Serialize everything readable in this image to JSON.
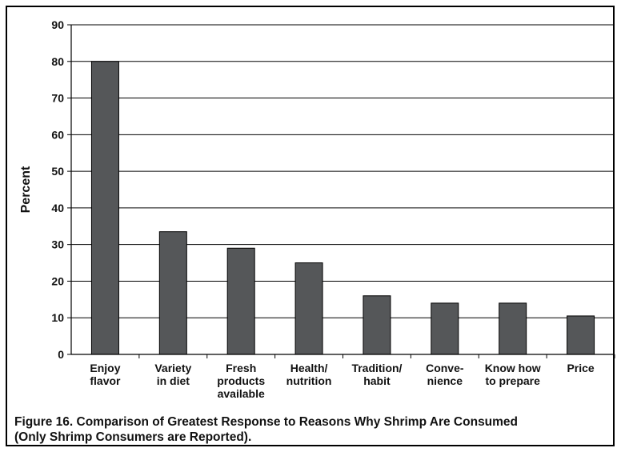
{
  "chart_data": {
    "type": "bar",
    "categories": [
      [
        "Enjoy",
        "flavor"
      ],
      [
        "Variety",
        "in diet"
      ],
      [
        "Fresh",
        "products",
        "available"
      ],
      [
        "Health/",
        "nutrition"
      ],
      [
        "Tradition/",
        "habit"
      ],
      [
        "Conve-",
        "nience"
      ],
      [
        "Know how",
        "to prepare"
      ],
      [
        "Price"
      ]
    ],
    "values": [
      80,
      33.5,
      29,
      25,
      16,
      14,
      14,
      10.5
    ],
    "ylabel": "Percent",
    "xlabel": "",
    "ylim": [
      0,
      90
    ],
    "yticks": [
      0,
      10,
      20,
      30,
      40,
      50,
      60,
      70,
      80,
      90
    ],
    "grid": true,
    "bar_color": "#555759"
  },
  "caption": {
    "line1": "Figure 16. Comparison of Greatest Response to Reasons Why Shrimp Are Consumed",
    "line2": "(Only Shrimp Consumers are Reported)."
  }
}
